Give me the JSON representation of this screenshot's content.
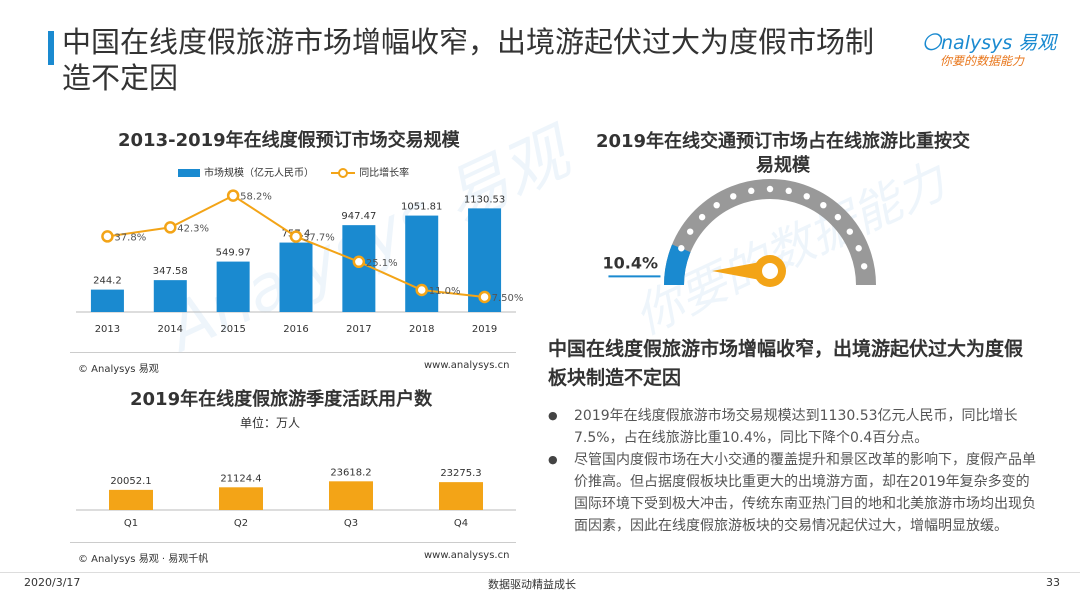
{
  "header": {
    "title": "中国在线度假旅游市场增幅收窄，出境游起伏过大为度假市场制造不定因",
    "logo_brand": "nalysys 易观",
    "logo_mark": "〇",
    "logo_slogan": "你要的数据能力"
  },
  "watermark": {
    "text1": "Analysys 易观",
    "text2": "你要的数据能力"
  },
  "chart_data": [
    {
      "type": "bar",
      "title": "2013-2019年在线度假预订市场交易规模",
      "categories": [
        "2013",
        "2014",
        "2015",
        "2016",
        "2017",
        "2018",
        "2019"
      ],
      "series": [
        {
          "name": "市场规模（亿元人民币）",
          "type": "bar",
          "values": [
            244.2,
            347.58,
            549.97,
            757.4,
            947.47,
            1051.81,
            1130.53
          ],
          "color": "#1a8ad0"
        },
        {
          "name": "同比增长率",
          "type": "line",
          "values": [
            37.8,
            42.3,
            58.2,
            37.7,
            25.1,
            11.0,
            7.5
          ],
          "labels": [
            "37.8%",
            "42.3%",
            "58.2%",
            "37.7%",
            "25.1%",
            "11.0%",
            "7.50%"
          ],
          "color": "#f3a417"
        }
      ],
      "ylim": [
        0,
        1200
      ],
      "ylim2": [
        0,
        65
      ],
      "source": "© Analysys 易观",
      "source_url": "www.analysys.cn"
    },
    {
      "type": "bar",
      "title": "2019年在线度假旅游季度活跃用户数",
      "unit": "单位：万人",
      "categories": [
        "Q1",
        "Q2",
        "Q3",
        "Q4"
      ],
      "values": [
        20052.1,
        21124.4,
        23618.2,
        23275.3
      ],
      "ylim": [
        0,
        25000
      ],
      "color": "#f3a417",
      "source": "© Analysys 易观 · 易观千帆",
      "source_url": "www.analysys.cn"
    },
    {
      "type": "gauge",
      "title": "2019年在线交通预订市场占在线旅游比重按交易规模",
      "value": 10.4,
      "label": "10.4%",
      "color": "#1a8ad0",
      "track_color": "#999999",
      "pointer_color": "#f3a417"
    }
  ],
  "summary": {
    "title": "中国在线度假旅游市场增幅收窄，出境游起伏过大为度假板块制造不定因",
    "bullets": [
      "2019年在线度假旅游市场交易规模达到1130.53亿元人民币，同比增长7.5%，占在线旅游比重10.4%，同比下降个0.4百分点。",
      "尽管国内度假市场在大小交通的覆盖提升和景区改革的影响下，度假产品单价推高。但占据度假板块比重更大的出境游方面，却在2019年复杂多变的国际环境下受到极大冲击，传统东南亚热门目的地和北美旅游市场均出现负面因素，因此在线度假旅游板块的交易情况起伏过大，增幅明显放缓。"
    ]
  },
  "footer": {
    "date": "2020/3/17",
    "center": "数据驱动精益成长",
    "page": "33"
  }
}
